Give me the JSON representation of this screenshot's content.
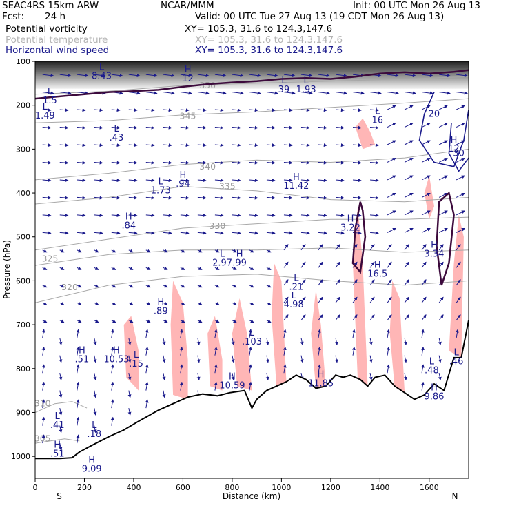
{
  "header": {
    "model": "SEAC4RS 15km ARW",
    "org": "NCAR/MMM",
    "init": "Init: 00 UTC Mon 26 Aug 13",
    "fcst_label": "Fcst:",
    "fcst_value": "24 h",
    "valid": "Valid: 00 UTC Tue 27 Aug 13 (19 CDT Mon 26 Aug 13)",
    "fields": [
      {
        "name": "Potential vorticity",
        "xy": "XY= 105.3, 31.6 to 124.3,147.6",
        "color": "#000000"
      },
      {
        "name": "Potential temperature",
        "xy": "XY= 105.3, 31.6 to 124.3,147.6",
        "color": "#b4b4b4"
      },
      {
        "name": "Horizontal wind speed",
        "xy": "XY= 105.3, 31.6 to 124.3,147.6",
        "color": "#1a1a8c"
      }
    ]
  },
  "chart_data": {
    "type": "cross-section",
    "xlabel": "Distance (km)",
    "ylabel": "Pressure (hPa)",
    "xlim": [
      0,
      1760
    ],
    "ylim": [
      1050,
      100
    ],
    "x_ticks": [
      0,
      200,
      400,
      600,
      800,
      1000,
      1200,
      1400,
      1600
    ],
    "y_ticks": [
      100,
      200,
      300,
      400,
      500,
      600,
      700,
      800,
      900,
      1000
    ],
    "endpoint_labels": {
      "left": "S",
      "right": "N"
    },
    "colors": {
      "terrain": "#000000",
      "pv_fill": "#ffb6b6",
      "theta": "#a8a8a8",
      "wind": "#1a1a8c",
      "pv_contour": "#3c0a3c"
    },
    "terrain": [
      [
        0,
        1005
      ],
      [
        100,
        1005
      ],
      [
        150,
        1003
      ],
      [
        180,
        990
      ],
      [
        230,
        975
      ],
      [
        300,
        955
      ],
      [
        360,
        940
      ],
      [
        420,
        920
      ],
      [
        500,
        895
      ],
      [
        560,
        880
      ],
      [
        620,
        865
      ],
      [
        680,
        858
      ],
      [
        740,
        862
      ],
      [
        790,
        855
      ],
      [
        850,
        850
      ],
      [
        880,
        890
      ],
      [
        900,
        870
      ],
      [
        940,
        850
      ],
      [
        980,
        840
      ],
      [
        1020,
        830
      ],
      [
        1060,
        815
      ],
      [
        1100,
        825
      ],
      [
        1140,
        845
      ],
      [
        1180,
        840
      ],
      [
        1220,
        815
      ],
      [
        1250,
        820
      ],
      [
        1280,
        815
      ],
      [
        1320,
        825
      ],
      [
        1350,
        840
      ],
      [
        1380,
        820
      ],
      [
        1420,
        815
      ],
      [
        1460,
        840
      ],
      [
        1500,
        855
      ],
      [
        1540,
        870
      ],
      [
        1580,
        860
      ],
      [
        1620,
        835
      ],
      [
        1660,
        850
      ],
      [
        1700,
        775
      ],
      [
        1730,
        775
      ],
      [
        1760,
        690
      ]
    ],
    "theta_contours": [
      {
        "label": "350",
        "points": [
          [
            0,
            175
          ],
          [
            300,
            168
          ],
          [
            600,
            155
          ],
          [
            900,
            150
          ],
          [
            1200,
            145
          ],
          [
            1500,
            140
          ],
          [
            1760,
            135
          ]
        ],
        "label_at": [
          700,
          155
        ]
      },
      {
        "label": "345",
        "points": [
          [
            0,
            240
          ],
          [
            300,
            235
          ],
          [
            600,
            222
          ],
          [
            900,
            215
          ],
          [
            1200,
            205
          ],
          [
            1500,
            195
          ],
          [
            1760,
            185
          ]
        ],
        "label_at": [
          620,
          225
        ]
      },
      {
        "label": "340",
        "points": [
          [
            0,
            370
          ],
          [
            300,
            355
          ],
          [
            600,
            335
          ],
          [
            900,
            325
          ],
          [
            1200,
            330
          ],
          [
            1500,
            320
          ],
          [
            1760,
            300
          ]
        ],
        "label_at": [
          700,
          340
        ]
      },
      {
        "label": "335",
        "points": [
          [
            0,
            425
          ],
          [
            300,
            410
          ],
          [
            600,
            385
          ],
          [
            900,
            395
          ],
          [
            1200,
            415
          ],
          [
            1500,
            420
          ],
          [
            1760,
            410
          ]
        ],
        "label_at": [
          780,
          385
        ]
      },
      {
        "label": "330",
        "points": [
          [
            0,
            530
          ],
          [
            300,
            505
          ],
          [
            600,
            480
          ],
          [
            900,
            470
          ],
          [
            1200,
            460
          ],
          [
            1500,
            460
          ],
          [
            1760,
            455
          ]
        ],
        "label_at": [
          740,
          475
        ]
      },
      {
        "label": "325",
        "points": [
          [
            0,
            565
          ],
          [
            300,
            540
          ],
          [
            600,
            530
          ],
          [
            900,
            530
          ],
          [
            1200,
            525
          ],
          [
            1500,
            535
          ],
          [
            1760,
            530
          ]
        ],
        "label_at": [
          60,
          550
        ]
      },
      {
        "label": "320",
        "points": [
          [
            0,
            650
          ],
          [
            300,
            610
          ],
          [
            600,
            590
          ],
          [
            900,
            585
          ],
          [
            1200,
            600
          ],
          [
            1500,
            610
          ],
          [
            1760,
            600
          ]
        ],
        "label_at": [
          140,
          615
        ]
      },
      {
        "label": "310",
        "points": [
          [
            0,
            900
          ],
          [
            80,
            880
          ],
          [
            150,
            875
          ],
          [
            210,
            890
          ]
        ],
        "label_at": [
          30,
          880
        ]
      },
      {
        "label": "305",
        "points": [
          [
            0,
            970
          ],
          [
            60,
            965
          ],
          [
            120,
            960
          ],
          [
            180,
            965
          ]
        ],
        "label_at": [
          30,
          960
        ]
      }
    ],
    "pv_regions": [
      [
        [
          620,
          780
        ],
        [
          600,
          650
        ],
        [
          560,
          600
        ],
        [
          550,
          700
        ],
        [
          560,
          860
        ],
        [
          620,
          870
        ]
      ],
      [
        [
          880,
          850
        ],
        [
          860,
          720
        ],
        [
          830,
          640
        ],
        [
          800,
          720
        ],
        [
          820,
          840
        ]
      ],
      [
        [
          1020,
          830
        ],
        [
          1000,
          600
        ],
        [
          970,
          560
        ],
        [
          960,
          680
        ],
        [
          980,
          840
        ]
      ],
      [
        [
          1180,
          840
        ],
        [
          1160,
          700
        ],
        [
          1140,
          620
        ],
        [
          1120,
          720
        ],
        [
          1140,
          845
        ]
      ],
      [
        [
          1350,
          840
        ],
        [
          1330,
          560
        ],
        [
          1310,
          430
        ],
        [
          1290,
          560
        ],
        [
          1310,
          830
        ]
      ],
      [
        [
          1500,
          855
        ],
        [
          1480,
          640
        ],
        [
          1450,
          600
        ],
        [
          1440,
          720
        ],
        [
          1460,
          845
        ]
      ],
      [
        [
          1680,
          760
        ],
        [
          1700,
          560
        ],
        [
          1720,
          450
        ],
        [
          1740,
          500
        ],
        [
          1730,
          775
        ]
      ],
      [
        [
          420,
          760
        ],
        [
          390,
          680
        ],
        [
          360,
          700
        ],
        [
          370,
          820
        ],
        [
          420,
          850
        ]
      ],
      [
        [
          760,
          780
        ],
        [
          730,
          680
        ],
        [
          700,
          720
        ],
        [
          710,
          840
        ],
        [
          760,
          850
        ]
      ],
      [
        [
          1360,
          260
        ],
        [
          1330,
          230
        ],
        [
          1300,
          250
        ],
        [
          1330,
          300
        ],
        [
          1380,
          290
        ]
      ],
      [
        [
          1620,
          430
        ],
        [
          1600,
          360
        ],
        [
          1580,
          400
        ],
        [
          1600,
          460
        ]
      ]
    ],
    "wind_speed_contours": [
      {
        "label": "20",
        "points": [
          [
            1620,
            170
          ],
          [
            1580,
            220
          ],
          [
            1560,
            280
          ],
          [
            1620,
            330
          ],
          [
            1700,
            340
          ],
          [
            1740,
            280
          ],
          [
            1760,
            210
          ]
        ]
      },
      {
        "label": "30",
        "points": [
          [
            1690,
            240
          ],
          [
            1680,
            310
          ],
          [
            1720,
            350
          ],
          [
            1760,
            320
          ]
        ]
      }
    ],
    "pv_contour": [
      [
        0,
        185
      ],
      [
        100,
        180
      ],
      [
        200,
        175
      ],
      [
        300,
        170
      ],
      [
        400,
        168
      ],
      [
        500,
        165
      ],
      [
        600,
        158
      ],
      [
        700,
        152
      ],
      [
        800,
        148
      ],
      [
        900,
        145
      ],
      [
        1000,
        140
      ],
      [
        1100,
        138
      ],
      [
        1200,
        140
      ],
      [
        1300,
        135
      ],
      [
        1400,
        128
      ],
      [
        1500,
        125
      ],
      [
        1600,
        128
      ],
      [
        1700,
        124
      ],
      [
        1760,
        120
      ]
    ],
    "pv_loops": [
      [
        [
          1320,
          420
        ],
        [
          1300,
          480
        ],
        [
          1290,
          560
        ],
        [
          1320,
          580
        ],
        [
          1340,
          500
        ],
        [
          1330,
          440
        ]
      ],
      [
        [
          1640,
          420
        ],
        [
          1630,
          520
        ],
        [
          1650,
          610
        ],
        [
          1680,
          560
        ],
        [
          1700,
          450
        ],
        [
          1680,
          400
        ]
      ]
    ],
    "extrema_labels": [
      {
        "type": "L",
        "value": "8.43",
        "x": 270,
        "y": 120
      },
      {
        "type": "H",
        "value": "12",
        "x": 620,
        "y": 125
      },
      {
        "type": "L",
        "value": "1.5",
        "x": 60,
        "y": 175
      },
      {
        "type": "L",
        "value": "1.93",
        "x": 1100,
        "y": 150
      },
      {
        "type": "L",
        "value": "39",
        "x": 1010,
        "y": 150
      },
      {
        "type": "L",
        "value": "1.49",
        "x": 40,
        "y": 210
      },
      {
        "type": "L",
        "value": ".43",
        "x": 330,
        "y": 260
      },
      {
        "type": "L",
        "value": "16",
        "x": 1390,
        "y": 220
      },
      {
        "type": "H",
        "value": "12",
        "x": 1700,
        "y": 285
      },
      {
        "type": "L",
        "value": "1.73",
        "x": 510,
        "y": 380
      },
      {
        "type": "H",
        "value": ".94",
        "x": 600,
        "y": 365
      },
      {
        "type": "H",
        "value": "11.42",
        "x": 1060,
        "y": 370
      },
      {
        "type": "H",
        "value": ".84",
        "x": 380,
        "y": 460
      },
      {
        "type": "H",
        "value": "3.22",
        "x": 1280,
        "y": 465
      },
      {
        "type": "H",
        "value": "3.34",
        "x": 1620,
        "y": 525
      },
      {
        "type": "L",
        "value": "2.97",
        "x": 760,
        "y": 545
      },
      {
        "type": "H",
        "value": ".99",
        "x": 830,
        "y": 545
      },
      {
        "type": "H",
        "value": "16.5",
        "x": 1390,
        "y": 570
      },
      {
        "type": "L",
        "value": ".21",
        "x": 1060,
        "y": 600
      },
      {
        "type": "L",
        "value": "4.98",
        "x": 1050,
        "y": 640
      },
      {
        "type": "H",
        "value": ".89",
        "x": 510,
        "y": 655
      },
      {
        "type": "L",
        "value": ".103",
        "x": 880,
        "y": 725
      },
      {
        "type": "H",
        "value": ".51",
        "x": 190,
        "y": 765
      },
      {
        "type": "H",
        "value": "10.53",
        "x": 330,
        "y": 765
      },
      {
        "type": "L",
        "value": ".15",
        "x": 410,
        "y": 775
      },
      {
        "type": "L",
        "value": ".46",
        "x": 1710,
        "y": 770
      },
      {
        "type": "L",
        "value": ".48",
        "x": 1610,
        "y": 790
      },
      {
        "type": "H",
        "value": "10.59",
        "x": 800,
        "y": 825
      },
      {
        "type": "H",
        "value": "11.85",
        "x": 1160,
        "y": 820
      },
      {
        "type": "H",
        "value": "9.86",
        "x": 1620,
        "y": 850
      },
      {
        "type": "L",
        "value": ".41",
        "x": 90,
        "y": 915
      },
      {
        "type": "L",
        "value": ".18",
        "x": 240,
        "y": 935
      },
      {
        "type": "H",
        "value": ".51",
        "x": 90,
        "y": 980
      },
      {
        "type": "H",
        "value": "9.09",
        "x": 230,
        "y": 1015
      }
    ]
  }
}
